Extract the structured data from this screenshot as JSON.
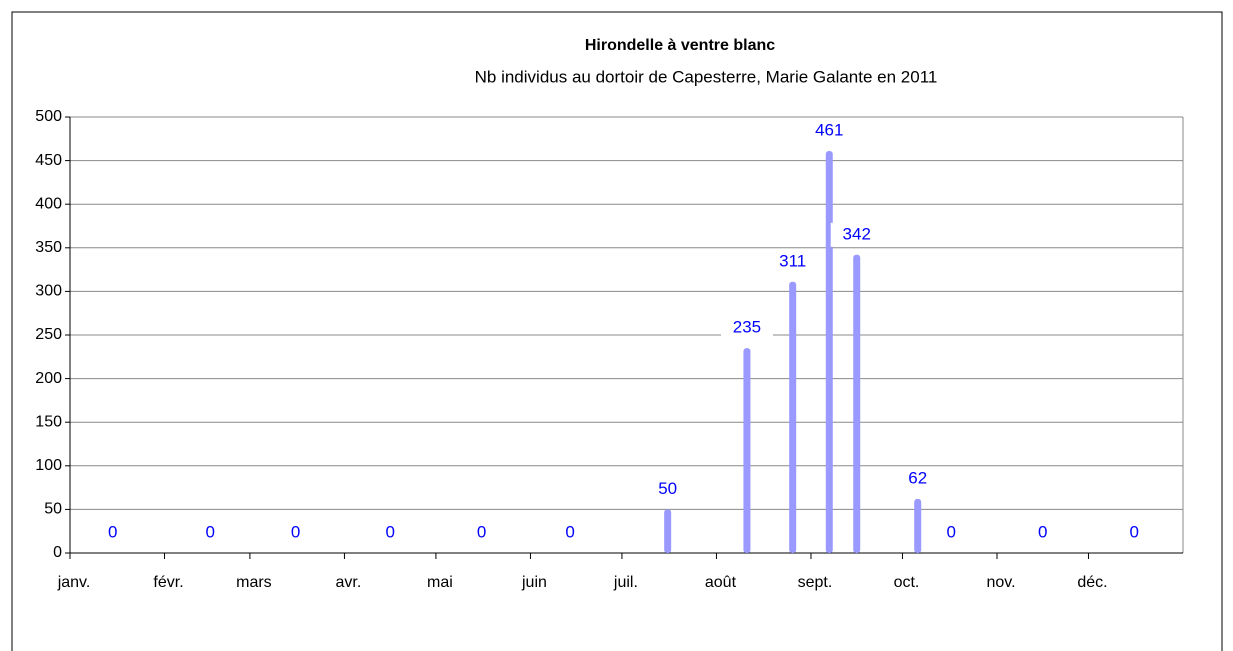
{
  "chart_data": {
    "type": "bar",
    "title": "Hirondelle à ventre blanc",
    "subtitle": "Nb individus au dortoir de Capesterre, Marie Galante en 2011",
    "x": [
      14,
      46,
      74,
      105,
      135,
      164,
      196,
      222,
      237,
      249,
      258,
      278,
      289,
      319,
      349
    ],
    "values": [
      0,
      0,
      0,
      0,
      0,
      0,
      50,
      235,
      311,
      461,
      342,
      62,
      0,
      0,
      0
    ],
    "color": "#9999ff",
    "label_color": "#0000ff",
    "xlim": [
      0,
      365
    ],
    "xticks": [
      {
        "value": 0,
        "label": "janv."
      },
      {
        "value": 31,
        "label": "févr."
      },
      {
        "value": 59,
        "label": "mars"
      },
      {
        "value": 90,
        "label": "avr."
      },
      {
        "value": 120,
        "label": "mai"
      },
      {
        "value": 151,
        "label": "juin"
      },
      {
        "value": 181,
        "label": "juil."
      },
      {
        "value": 212,
        "label": "août"
      },
      {
        "value": 243,
        "label": "sept."
      },
      {
        "value": 273,
        "label": "oct."
      },
      {
        "value": 304,
        "label": "nov."
      },
      {
        "value": 334,
        "label": "déc."
      }
    ],
    "ylim": [
      0,
      500
    ],
    "yticks": [
      0,
      50,
      100,
      150,
      200,
      250,
      300,
      350,
      400,
      450,
      500
    ],
    "grid": true
  }
}
